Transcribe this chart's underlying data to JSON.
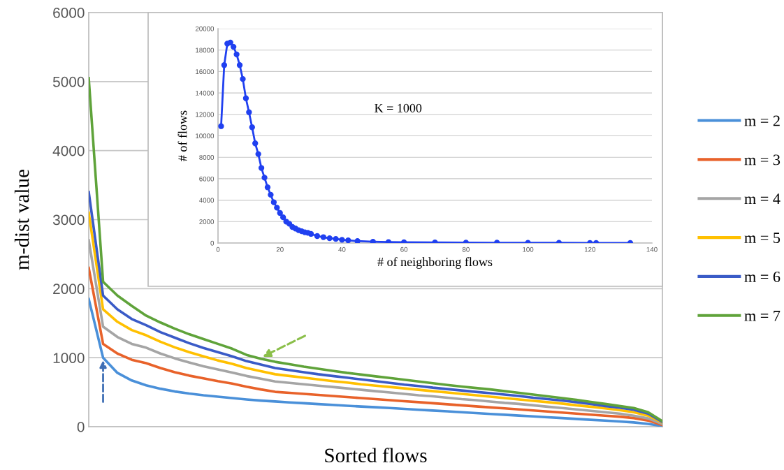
{
  "chart_data": [
    {
      "type": "line",
      "xlabel": "Sorted flows",
      "ylabel": "m-dist value",
      "ylim": [
        0,
        6000
      ],
      "yticks": [
        0,
        1000,
        2000,
        3000,
        4000,
        5000,
        6000
      ],
      "grid": "y",
      "legend": "right",
      "tick_labels": "y",
      "line_style": "solid",
      "categories": [
        null,
        null,
        null,
        null,
        null,
        null,
        null,
        null,
        null,
        null,
        null,
        null,
        null,
        null,
        null,
        null,
        null,
        null,
        null,
        null,
        null,
        null,
        null,
        null,
        null,
        null,
        null,
        null,
        null,
        null,
        null,
        null,
        null,
        null,
        null,
        null,
        null,
        null,
        null,
        null,
        null
      ],
      "series": [
        {
          "name": "m = 2",
          "color": "#4a90d9",
          "values": [
            1850,
            1000,
            780,
            670,
            600,
            550,
            510,
            480,
            455,
            435,
            415,
            395,
            378,
            365,
            352,
            340,
            328,
            316,
            304,
            292,
            282,
            270,
            258,
            246,
            234,
            222,
            210,
            198,
            185,
            173,
            161,
            149,
            137,
            125,
            113,
            100,
            88,
            76,
            62,
            40,
            10
          ]
        },
        {
          "name": "m = 3",
          "color": "#e8622a",
          "values": [
            2300,
            1200,
            1060,
            970,
            920,
            850,
            790,
            740,
            700,
            660,
            625,
            580,
            540,
            505,
            490,
            475,
            460,
            445,
            430,
            415,
            400,
            385,
            370,
            355,
            340,
            325,
            310,
            295,
            280,
            265,
            250,
            235,
            220,
            205,
            190,
            175,
            160,
            145,
            125,
            90,
            25
          ]
        },
        {
          "name": "m = 4",
          "color": "#a5a5a5",
          "values": [
            2700,
            1450,
            1300,
            1200,
            1145,
            1060,
            990,
            930,
            875,
            830,
            785,
            735,
            695,
            655,
            635,
            615,
            595,
            575,
            555,
            535,
            515,
            495,
            475,
            455,
            440,
            420,
            400,
            385,
            365,
            345,
            330,
            310,
            290,
            270,
            250,
            230,
            210,
            190,
            160,
            120,
            40
          ]
        },
        {
          "name": "m = 5",
          "color": "#ffc000",
          "values": [
            3100,
            1700,
            1520,
            1400,
            1325,
            1230,
            1150,
            1080,
            1020,
            960,
            910,
            850,
            805,
            760,
            735,
            710,
            685,
            660,
            640,
            615,
            595,
            575,
            555,
            535,
            515,
            495,
            475,
            455,
            435,
            415,
            395,
            375,
            355,
            335,
            310,
            290,
            265,
            240,
            210,
            160,
            60
          ]
        },
        {
          "name": "m = 6",
          "color": "#3a5bc7",
          "values": [
            3400,
            1900,
            1700,
            1560,
            1470,
            1370,
            1290,
            1210,
            1140,
            1080,
            1020,
            950,
            900,
            850,
            820,
            790,
            760,
            735,
            710,
            685,
            660,
            635,
            610,
            590,
            565,
            545,
            525,
            505,
            485,
            465,
            445,
            420,
            400,
            380,
            355,
            330,
            300,
            275,
            245,
            190,
            70
          ]
        },
        {
          "name": "m = 7",
          "color": "#5fa33a",
          "values": [
            5050,
            2100,
            1900,
            1750,
            1610,
            1510,
            1420,
            1340,
            1270,
            1200,
            1130,
            1040,
            985,
            940,
            905,
            870,
            840,
            810,
            780,
            755,
            730,
            705,
            680,
            655,
            630,
            605,
            582,
            560,
            540,
            515,
            490,
            465,
            440,
            415,
            390,
            360,
            330,
            300,
            270,
            210,
            80
          ]
        }
      ]
    },
    {
      "type": "line",
      "xlabel": "# of neighboring flows",
      "ylabel": "# of flows",
      "xlim": [
        0,
        140
      ],
      "xticks": [
        0,
        20,
        40,
        60,
        80,
        100,
        120,
        140
      ],
      "ylim": [
        0,
        20000
      ],
      "yticks": [
        0,
        2000,
        4000,
        6000,
        8000,
        10000,
        12000,
        14000,
        16000,
        18000,
        20000
      ],
      "grid": "y",
      "marker": "circle",
      "line_style": "solid",
      "annotations": [
        "K = 1000"
      ],
      "series": [
        {
          "color": "#2040f0",
          "x": [
            1,
            2,
            3,
            4,
            5,
            6,
            7,
            8,
            9,
            10,
            11,
            12,
            13,
            14,
            15,
            16,
            17,
            18,
            19,
            20,
            21,
            22,
            23,
            24,
            25,
            26,
            27,
            28,
            29,
            30,
            32,
            34,
            36,
            38,
            40,
            42,
            45,
            50,
            55,
            60,
            70,
            80,
            90,
            100,
            110,
            120,
            122,
            133
          ],
          "values": [
            10900,
            16600,
            18600,
            18700,
            18300,
            17600,
            16600,
            15300,
            13500,
            12200,
            10800,
            9300,
            8300,
            7000,
            6100,
            5200,
            4500,
            3800,
            3300,
            2800,
            2400,
            2000,
            1800,
            1500,
            1350,
            1200,
            1100,
            1000,
            950,
            850,
            650,
            550,
            450,
            380,
            300,
            250,
            180,
            120,
            90,
            70,
            50,
            40,
            30,
            20,
            20,
            10,
            10,
            10
          ]
        }
      ]
    }
  ]
}
